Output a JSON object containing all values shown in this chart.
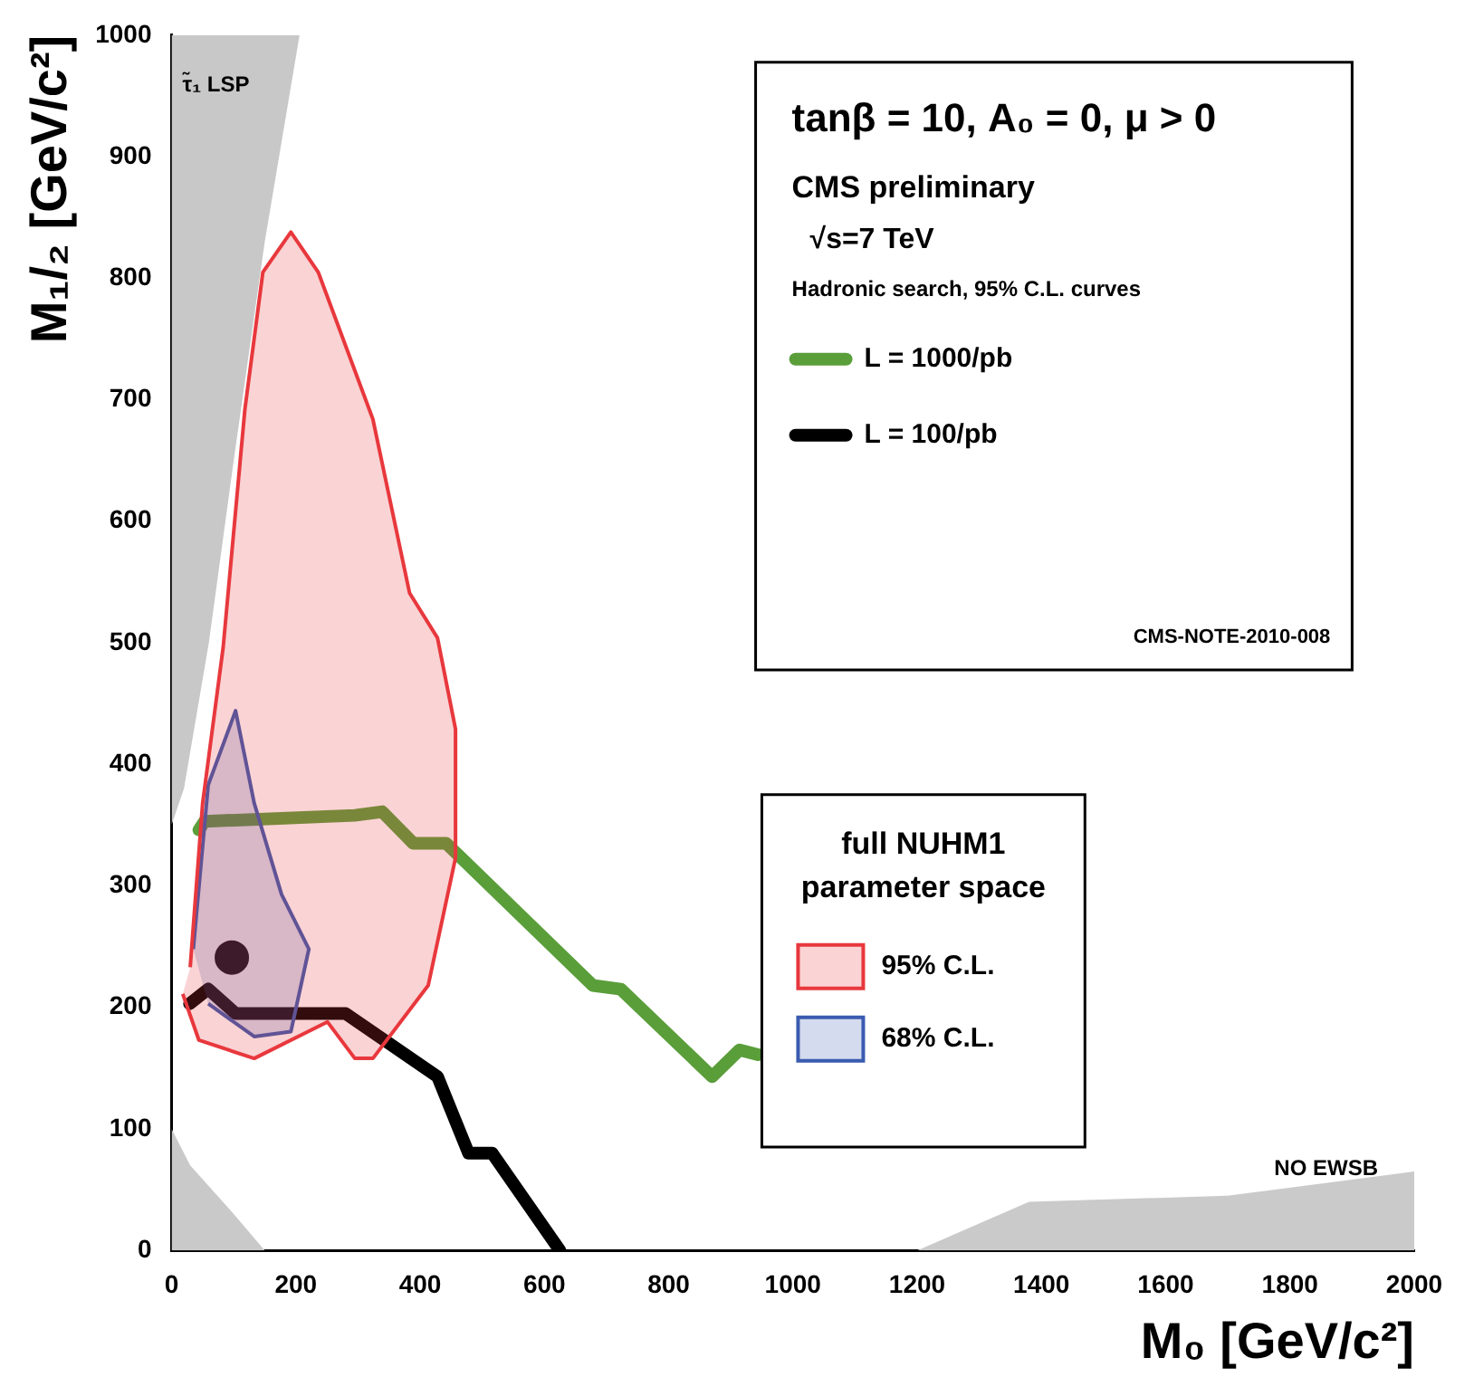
{
  "chart_data": {
    "type": "line",
    "xlabel": "M₀ [GeV/c²]",
    "ylabel": "M₁/₂ [GeV/c²]",
    "legend_title": "full NUHM1 parameter space",
    "legend": "right",
    "grid": false,
    "xlim": [
      0,
      2000
    ],
    "xticks": [
      0,
      200,
      400,
      600,
      800,
      1000,
      1200,
      1400,
      1600,
      1800,
      2000
    ],
    "ylim": [
      0,
      1000
    ],
    "yticks": [
      0,
      100,
      200,
      300,
      400,
      500,
      600,
      700,
      800,
      900,
      1000
    ],
    "annotations": [
      "tanβ = 10, A₀ = 0, μ > 0",
      "CMS preliminary",
      "√s=7 TeV",
      "Hadronic search, 95% C.L. curves",
      "CMS-NOTE-2010-008",
      "τ̃₁ LSP",
      "NO EWSB"
    ],
    "series": [
      {
        "type": "area",
        "color": "#c8c8c8",
        "x": [
          0,
          206,
          150,
          100,
          60,
          20,
          0
        ],
        "values": [
          1000,
          1000,
          830,
          650,
          500,
          380,
          350
        ]
      },
      {
        "type": "area",
        "color": "#c9c9c9",
        "x": [
          0,
          0,
          30,
          100,
          150
        ],
        "values": [
          0,
          100,
          70,
          30,
          0
        ]
      },
      {
        "type": "area",
        "color": "#cacaca",
        "x": [
          1200,
          1380,
          1700,
          2000,
          2000
        ],
        "values": [
          0,
          40,
          45,
          65,
          0
        ]
      },
      {
        "type": "area",
        "name": "95% C.L.",
        "color": "#e8383d",
        "x": [
          30,
          50,
          83,
          118,
          147,
          192,
          236,
          324,
          383,
          428,
          457,
          457,
          413,
          324,
          295,
          251,
          133,
          44,
          18
        ],
        "values": [
          233,
          368,
          496,
          692,
          805,
          838,
          805,
          684,
          541,
          504,
          429,
          323,
          218,
          158,
          158,
          188,
          158,
          173,
          211
        ]
      },
      {
        "type": "area",
        "name": "68% C.L.",
        "color": "#3a5bb0",
        "x": [
          35,
          59,
          103,
          133,
          177,
          221,
          192,
          133,
          59
        ],
        "values": [
          248,
          383,
          444,
          368,
          293,
          248,
          180,
          176,
          203
        ]
      },
      {
        "name": "L = 1000/pb",
        "color": "#5a9e3a",
        "x": [
          44,
          53,
          295,
          339,
          389,
          442,
          678,
          723,
          870,
          914,
          944
        ],
        "values": [
          346,
          353,
          358,
          361,
          335,
          335,
          218,
          215,
          143,
          165,
          161
        ]
      },
      {
        "name": "L = 100/pb",
        "color": "#000000",
        "x": [
          29,
          59,
          103,
          280,
          428,
          478,
          516,
          625
        ],
        "values": [
          203,
          215,
          195,
          195,
          143,
          80,
          80,
          0
        ]
      },
      {
        "type": "scatter",
        "marker": "circle",
        "color": "#000000",
        "x": [
          97
        ],
        "values": [
          241
        ]
      }
    ]
  }
}
